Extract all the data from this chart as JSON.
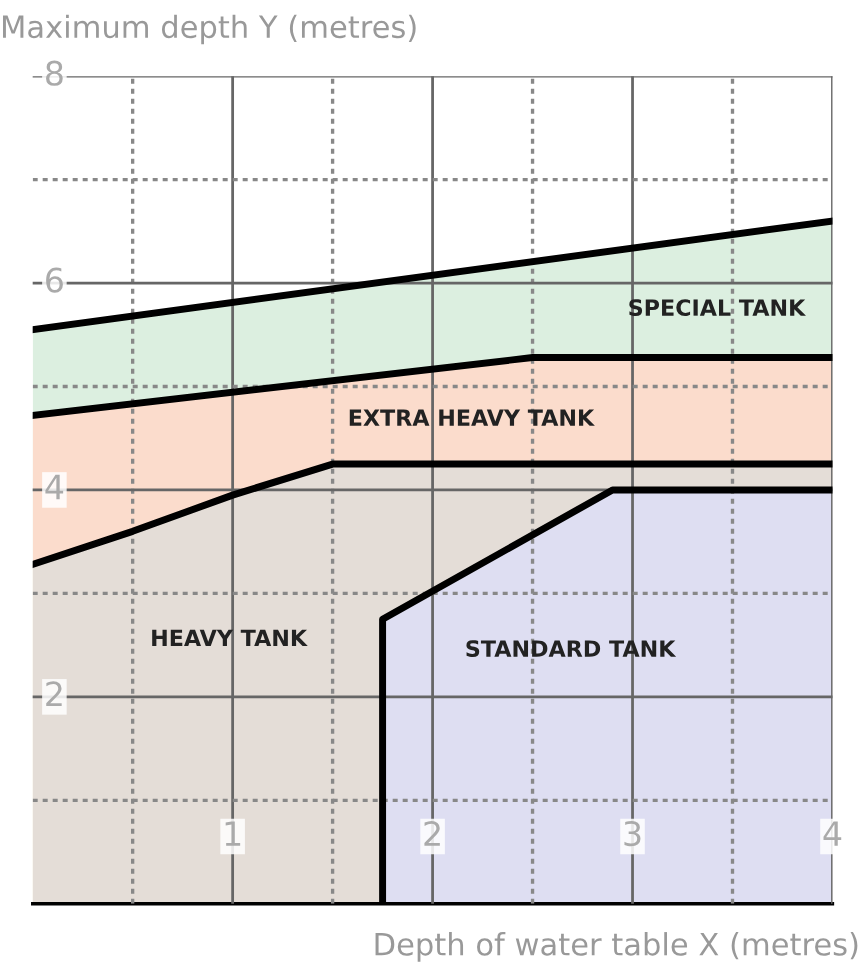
{
  "chart_data": {
    "type": "area",
    "ylabel": "Maximum depth Y (metres)",
    "xlabel": "Depth of water table X (metres)",
    "series": [
      {
        "color": "#dcefe0",
        "x": [
          0,
          4
        ],
        "values": [
          5.55,
          6.6
        ]
      },
      {
        "color": "#fbdccc",
        "x": [
          0,
          2.5,
          4
        ],
        "values": [
          4.72,
          5.28,
          5.28
        ]
      },
      {
        "color": "#e4ddd7",
        "x": [
          0,
          0.5,
          1,
          1.5,
          4
        ],
        "values": [
          3.28,
          3.6,
          3.95,
          4.25,
          4.25
        ]
      },
      {
        "color": "#dedef2",
        "x": [
          1.75,
          1.75,
          2.9,
          4
        ],
        "values": [
          0,
          2.75,
          4,
          4
        ]
      }
    ],
    "annotations": [
      "SPECIAL TANK",
      "EXTRA HEAVY TANK",
      "HEAVY TANK",
      "STANDARD TANK"
    ],
    "xlim": [
      0,
      4
    ],
    "ylim": [
      0,
      8
    ],
    "xticks": [
      {
        "value": 0.5,
        "label": null
      },
      1,
      {
        "value": 1.5,
        "label": null
      },
      2,
      {
        "value": 2.5,
        "label": null
      },
      3,
      {
        "value": 3.5,
        "label": null
      },
      4
    ],
    "yticks": [
      {
        "value": 1,
        "label": null
      },
      2,
      {
        "value": 3,
        "label": null
      },
      4,
      {
        "value": 5,
        "label": null
      },
      6,
      {
        "value": 7,
        "label": null
      },
      8
    ],
    "grid": true
  }
}
